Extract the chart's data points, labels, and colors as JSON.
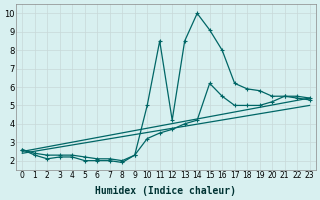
{
  "xlabel": "Humidex (Indice chaleur)",
  "ylabel": "",
  "background_color": "#d8f0f0",
  "grid_color": "#c8d8d8",
  "line_color": "#006666",
  "xlim": [
    -0.5,
    23.5
  ],
  "ylim": [
    1.5,
    10.5
  ],
  "yticks": [
    2,
    3,
    4,
    5,
    6,
    7,
    8,
    9,
    10
  ],
  "xticks": [
    0,
    1,
    2,
    3,
    4,
    5,
    6,
    7,
    8,
    9,
    10,
    11,
    12,
    13,
    14,
    15,
    16,
    17,
    18,
    19,
    20,
    21,
    22,
    23
  ],
  "line1_x": [
    0,
    1,
    2,
    3,
    4,
    5,
    6,
    7,
    8,
    9,
    10,
    11,
    12,
    13,
    14,
    15,
    16,
    17,
    18,
    19,
    20,
    21,
    22,
    23
  ],
  "line1_y": [
    2.6,
    2.3,
    2.1,
    2.2,
    2.2,
    2.0,
    2.0,
    2.0,
    1.9,
    2.3,
    5.0,
    8.5,
    4.2,
    8.5,
    10.0,
    9.1,
    8.0,
    6.2,
    5.9,
    5.8,
    5.5,
    5.5,
    5.4,
    5.3
  ],
  "line2_x": [
    0,
    1,
    2,
    3,
    4,
    5,
    6,
    7,
    8,
    9,
    10,
    11,
    12,
    13,
    14,
    15,
    16,
    17,
    18,
    19,
    20,
    21,
    22,
    23
  ],
  "line2_y": [
    2.6,
    2.4,
    2.3,
    2.3,
    2.3,
    2.2,
    2.1,
    2.1,
    2.0,
    2.3,
    3.2,
    3.5,
    3.7,
    4.0,
    4.2,
    6.2,
    5.5,
    5.0,
    5.0,
    5.0,
    5.2,
    5.5,
    5.5,
    5.4
  ],
  "line3_x": [
    0,
    23
  ],
  "line3_y": [
    2.5,
    5.4
  ],
  "line4_x": [
    0,
    23
  ],
  "line4_y": [
    2.4,
    5.0
  ]
}
